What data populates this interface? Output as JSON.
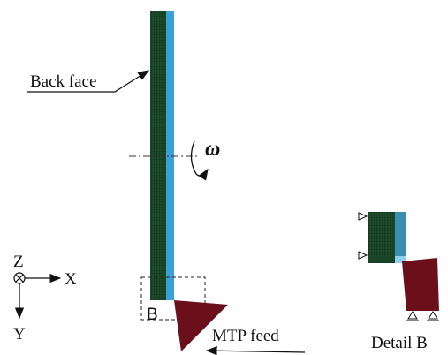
{
  "labels": {
    "back_face": "Back face",
    "omega": "ω",
    "axis_z": "Z",
    "axis_x": "X",
    "axis_y": "Y",
    "detail_marker": "B",
    "feed": "MTP feed",
    "detail_title": "Detail B"
  }
}
